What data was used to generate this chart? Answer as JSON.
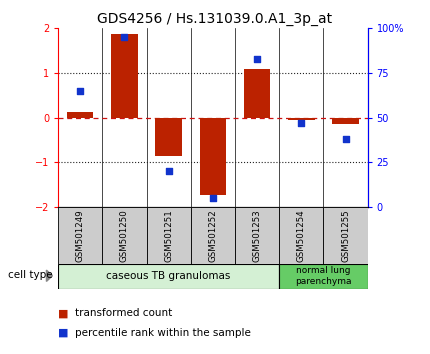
{
  "title": "GDS4256 / Hs.131039.0.A1_3p_at",
  "samples": [
    "GSM501249",
    "GSM501250",
    "GSM501251",
    "GSM501252",
    "GSM501253",
    "GSM501254",
    "GSM501255"
  ],
  "transformed_count": [
    0.12,
    1.88,
    -0.85,
    -1.72,
    1.08,
    -0.05,
    -0.15
  ],
  "percentile_rank": [
    65,
    95,
    20,
    5,
    83,
    47,
    38
  ],
  "ylim_left": [
    -2,
    2
  ],
  "yticks_left": [
    -2,
    -1,
    0,
    1,
    2
  ],
  "ylim_right": [
    0,
    100
  ],
  "yticks_right": [
    0,
    25,
    50,
    75,
    100
  ],
  "ytick_labels_right": [
    "0",
    "25",
    "50",
    "75",
    "100%"
  ],
  "bar_color": "#bb2200",
  "dot_color": "#1133cc",
  "zero_line_color": "#cc1111",
  "dotted_line_color": "#222222",
  "group1_label": "caseous TB granulomas",
  "group2_label": "normal lung\nparenchyma",
  "group1_color": "#d4f0d4",
  "group2_color": "#66cc66",
  "sample_box_color": "#cccccc",
  "cell_type_label": "cell type",
  "legend1_label": "transformed count",
  "legend2_label": "percentile rank within the sample",
  "bar_width": 0.6,
  "title_fontsize": 10,
  "tick_fontsize": 7,
  "label_fontsize": 7.5
}
